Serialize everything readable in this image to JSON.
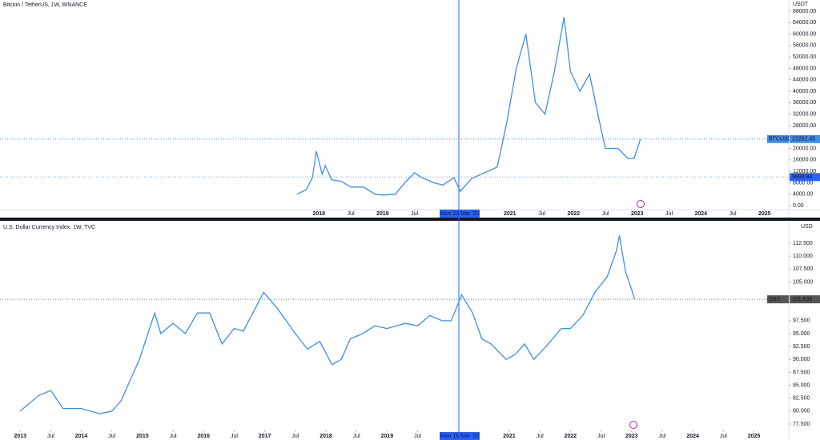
{
  "chart_data": [
    {
      "type": "line",
      "title": "Bitcoin / TetherUS, 1W, BINANCE",
      "unit": "USDT",
      "color": "#3d8ee8",
      "x": [
        2017.65,
        2017.8,
        2017.9,
        2017.96,
        2018.05,
        2018.1,
        2018.2,
        2018.35,
        2018.5,
        2018.7,
        2018.88,
        2019.0,
        2019.2,
        2019.35,
        2019.5,
        2019.6,
        2019.8,
        2019.95,
        2020.12,
        2020.22,
        2020.4,
        2020.6,
        2020.8,
        2020.95,
        2021.1,
        2021.25,
        2021.4,
        2021.55,
        2021.7,
        2021.85,
        2021.95,
        2022.1,
        2022.25,
        2022.4,
        2022.5,
        2022.7,
        2022.85,
        2022.95,
        2023.05
      ],
      "values": [
        4000,
        5500,
        10000,
        19000,
        11000,
        14000,
        9000,
        8500,
        6500,
        6500,
        4000,
        3700,
        4000,
        8000,
        11500,
        10000,
        8000,
        7200,
        9800,
        5000,
        9500,
        11500,
        13500,
        29000,
        48000,
        60000,
        36000,
        32000,
        47000,
        66000,
        47000,
        40000,
        46000,
        30000,
        20000,
        20000,
        16500,
        16500,
        23282.45
      ],
      "xlim": [
        2012.99,
        2025.38
      ],
      "ylim": [
        -1400,
        71920
      ],
      "xticks": [
        2018,
        {
          "value": 2018.5,
          "label": "Jul"
        },
        2019,
        {
          "value": 2019.5,
          "label": "Jul"
        },
        2021,
        {
          "value": 2021.5,
          "label": "Jul"
        },
        2022,
        {
          "value": 2022.5,
          "label": "Jul"
        },
        2023,
        {
          "value": 2023.5,
          "label": "Jul"
        },
        2024,
        {
          "value": 2024.5,
          "label": "Jul"
        },
        2025
      ],
      "yticks": [
        {
          "value": 0,
          "label": "0.00"
        },
        {
          "value": 4000,
          "label": "4000.00"
        },
        {
          "value": 8000,
          "label": "8000.00"
        },
        {
          "value": 12000,
          "label": "12000.00"
        },
        {
          "value": 16000,
          "label": "16000.00"
        },
        {
          "value": 20000,
          "label": "20000.00"
        },
        {
          "value": 28000,
          "label": "28000.00"
        },
        {
          "value": 32000,
          "label": "32000.00"
        },
        {
          "value": 36000,
          "label": "36000.00"
        },
        {
          "value": 40000,
          "label": "40000.00"
        },
        {
          "value": 44000,
          "label": "44000.00"
        },
        {
          "value": 48000,
          "label": "48000.00"
        },
        {
          "value": 52000,
          "label": "52000.00"
        },
        {
          "value": 56000,
          "label": "56000.00"
        },
        {
          "value": 60000,
          "label": "60000.00"
        },
        {
          "value": 64000,
          "label": "64000.00"
        },
        {
          "value": 68000,
          "label": "68000.00"
        }
      ],
      "symbol": "BTCUSDT",
      "crosshair_date": "Mon 23 Mar '20",
      "crosshair_value": 9993.84
    },
    {
      "type": "line",
      "title": "U.S. Dollar Currency Index, 1W, TVC",
      "unit": "USD",
      "color": "#3d8ee8",
      "x": [
        2013.0,
        2013.3,
        2013.5,
        2013.7,
        2013.9,
        2014.0,
        2014.3,
        2014.5,
        2014.65,
        2014.8,
        2014.95,
        2015.2,
        2015.3,
        2015.5,
        2015.7,
        2015.9,
        2016.1,
        2016.3,
        2016.5,
        2016.65,
        2016.85,
        2016.98,
        2017.2,
        2017.5,
        2017.7,
        2017.9,
        2018.1,
        2018.25,
        2018.4,
        2018.6,
        2018.8,
        2019.0,
        2019.3,
        2019.5,
        2019.7,
        2019.9,
        2020.05,
        2020.22,
        2020.4,
        2020.55,
        2020.7,
        2020.95,
        2021.1,
        2021.25,
        2021.4,
        2021.6,
        2021.85,
        2022.0,
        2022.2,
        2022.4,
        2022.6,
        2022.75,
        2022.8,
        2022.9,
        2023.0,
        2023.05
      ],
      "values": [
        80,
        83,
        84,
        80.5,
        80.5,
        80.5,
        79.5,
        80,
        82,
        86,
        90,
        99,
        95,
        97,
        95,
        99,
        99,
        93,
        96,
        95.5,
        100,
        103,
        100,
        95,
        92,
        93.5,
        89,
        90,
        94,
        95,
        96.5,
        96,
        97,
        96.5,
        98.5,
        97.5,
        97.5,
        102.5,
        99,
        94,
        93,
        90,
        91,
        93,
        90,
        92.5,
        96,
        96,
        98.5,
        103,
        106,
        111,
        114,
        107,
        103.5,
        101.639
      ],
      "xlim": [
        2012.67,
        2025.57
      ],
      "ylim": [
        76.26,
        116.84
      ],
      "xticks": [
        2013,
        {
          "value": 2013.5,
          "label": "Jul"
        },
        2014,
        {
          "value": 2014.5,
          "label": "Jul"
        },
        2015,
        {
          "value": 2015.5,
          "label": "Jul"
        },
        2016,
        {
          "value": 2016.5,
          "label": "Jul"
        },
        2017,
        {
          "value": 2017.5,
          "label": "Jul"
        },
        2018,
        {
          "value": 2018.5,
          "label": "Jul"
        },
        2019,
        {
          "value": 2019.5,
          "label": "Jul"
        },
        2021,
        {
          "value": 2021.5,
          "label": "Jul"
        },
        2022,
        {
          "value": 2022.5,
          "label": "Jul"
        },
        2023,
        {
          "value": 2023.5,
          "label": "Jul"
        },
        2024,
        {
          "value": 2024.5,
          "label": "Jul"
        },
        2025
      ],
      "yticks": [
        {
          "value": 77.5,
          "label": "77.500"
        },
        {
          "value": 80,
          "label": "80.000"
        },
        {
          "value": 82.5,
          "label": "82.500"
        },
        {
          "value": 85,
          "label": "85.000"
        },
        {
          "value": 87.5,
          "label": "87.500"
        },
        {
          "value": 90,
          "label": "90.000"
        },
        {
          "value": 92.5,
          "label": "92.500"
        },
        {
          "value": 95,
          "label": "95.000"
        },
        {
          "value": 97.5,
          "label": "97.500"
        },
        {
          "value": 105,
          "label": "105.000"
        },
        {
          "value": 107.5,
          "label": "107.500"
        },
        {
          "value": 110,
          "label": "110.000"
        },
        {
          "value": 112.5,
          "label": "112.500"
        }
      ],
      "symbol": "DXY",
      "crosshair_date": "Mon 16 Mar '20"
    }
  ]
}
